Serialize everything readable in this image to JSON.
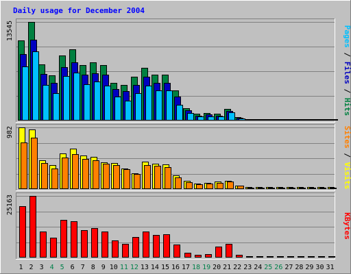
{
  "chart_data": {
    "type": "bar",
    "title": "Daily usage for December 2004",
    "categories": [
      "1",
      "2",
      "3",
      "4",
      "5",
      "6",
      "7",
      "8",
      "9",
      "10",
      "11",
      "12",
      "13",
      "14",
      "15",
      "16",
      "17",
      "18",
      "19",
      "20",
      "21",
      "22",
      "23",
      "24",
      "25",
      "26",
      "27",
      "28",
      "29",
      "30",
      "31"
    ],
    "weekend_days": [
      "4",
      "5",
      "11",
      "12",
      "18",
      "19",
      "25",
      "26"
    ],
    "panels": [
      {
        "ymax": 13545,
        "ymax_label": "13545",
        "axis_labels": [
          {
            "text": "Pages",
            "color": "#00C0FF"
          },
          {
            "text": " / ",
            "color": "#000000"
          },
          {
            "text": "Files",
            "color": "#0000C0"
          },
          {
            "text": " / ",
            "color": "#000000"
          },
          {
            "text": "Hits",
            "color": "#008040"
          }
        ],
        "series": [
          {
            "name": "Hits",
            "color": "#008040",
            "values": [
              11000,
              13545,
              7700,
              6200,
              8900,
              9800,
              7600,
              8000,
              7600,
              5200,
              4900,
              6000,
              7200,
              6300,
              6300,
              4100,
              1700,
              900,
              1000,
              900,
              1600,
              500,
              200,
              200,
              100,
              100,
              200,
              200,
              100,
              100,
              100
            ]
          },
          {
            "name": "Files",
            "color": "#0000C0",
            "values": [
              9100,
              11100,
              6400,
              5200,
              7300,
              8000,
              6300,
              6500,
              6300,
              4300,
              4000,
              4900,
              6000,
              5200,
              5200,
              3300,
              1400,
              700,
              800,
              700,
              1300,
              400,
              200,
              100,
              100,
              100,
              100,
              100,
              100,
              100,
              100
            ]
          },
          {
            "name": "Pages",
            "color": "#00C0FF",
            "values": [
              7400,
              9500,
              4900,
              3800,
              6100,
              6600,
              5000,
              5400,
              4800,
              3300,
              2700,
              3800,
              4800,
              4100,
              4100,
              2200,
              1000,
              600,
              600,
              600,
              1100,
              300,
              100,
              100,
              100,
              100,
              100,
              100,
              100,
              100,
              100
            ]
          }
        ]
      },
      {
        "ymax": 982,
        "ymax_label": "982",
        "axis_labels": [
          {
            "text": "Sites",
            "color": "#FF8000"
          },
          {
            "text": " / ",
            "color": "#000000"
          },
          {
            "text": "Visits",
            "color": "#FFFF00"
          }
        ],
        "series": [
          {
            "name": "Visits",
            "color": "#FFFF00",
            "values": [
              982,
              950,
              460,
              380,
              570,
              640,
              540,
              510,
              430,
              420,
              330,
              250,
              440,
              400,
              390,
              220,
              130,
              90,
              100,
              120,
              130,
              60,
              30,
              30,
              30,
              30,
              30,
              30,
              30,
              30,
              30
            ]
          },
          {
            "name": "Sites",
            "color": "#FF8000",
            "values": [
              740,
              820,
              410,
              330,
              500,
              560,
              480,
              460,
              400,
              380,
              320,
              240,
              380,
              370,
              350,
              190,
              110,
              80,
              90,
              100,
              120,
              50,
              25,
              25,
              25,
              25,
              25,
              25,
              25,
              25,
              25
            ]
          }
        ]
      },
      {
        "ymax": 25163,
        "ymax_label": "25163",
        "axis_labels": [
          {
            "text": "KBytes",
            "color": "#FF0000"
          }
        ],
        "series": [
          {
            "name": "KBytes",
            "color": "#FF0000",
            "values": [
              21000,
              25163,
              10500,
              8000,
              15300,
              14800,
              11300,
              11900,
              10700,
              7100,
              5600,
              8500,
              10600,
              9300,
              9600,
              5400,
              2000,
              1200,
              1300,
              4600,
              5500,
              1100,
              400,
              400,
              300,
              300,
              500,
              500,
              300,
              300,
              300
            ]
          }
        ]
      }
    ]
  },
  "colors": {
    "background": "#C0C0C0",
    "plot_background": "#C0C0C0",
    "title": "#0000FF",
    "gridline": "#808080",
    "weekday_label": "#000000",
    "weekend_label": "#00804A"
  }
}
